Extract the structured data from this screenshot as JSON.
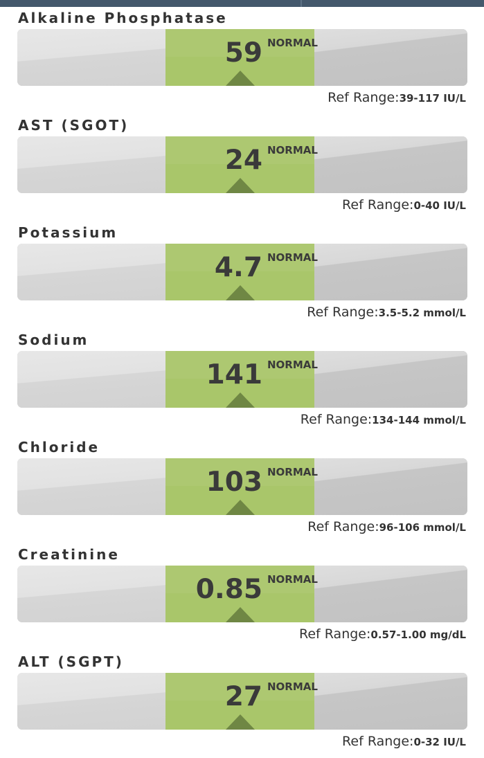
{
  "ref_label": "Ref Range:",
  "colors": {
    "header": "#44586c",
    "normal_band": "#a9c66a",
    "pointer": "#6f8744",
    "track": "#d2d2d2"
  },
  "results": [
    {
      "name": "Alkaline Phosphatase",
      "value": "59",
      "status": "NORMAL",
      "ref_range": "39-117 IU/L"
    },
    {
      "name": "AST (SGOT)",
      "value": "24",
      "status": "NORMAL",
      "ref_range": "0-40 IU/L"
    },
    {
      "name": "Potassium",
      "value": "4.7",
      "status": "NORMAL",
      "ref_range": "3.5-5.2 mmol/L"
    },
    {
      "name": "Sodium",
      "value": "141",
      "status": "NORMAL",
      "ref_range": "134-144 mmol/L"
    },
    {
      "name": "Chloride",
      "value": "103",
      "status": "NORMAL",
      "ref_range": "96-106 mmol/L"
    },
    {
      "name": "Creatinine",
      "value": "0.85",
      "status": "NORMAL",
      "ref_range": "0.57-1.00 mg/dL"
    },
    {
      "name": "ALT (SGPT)",
      "value": "27",
      "status": "NORMAL",
      "ref_range": "0-32 IU/L"
    }
  ]
}
